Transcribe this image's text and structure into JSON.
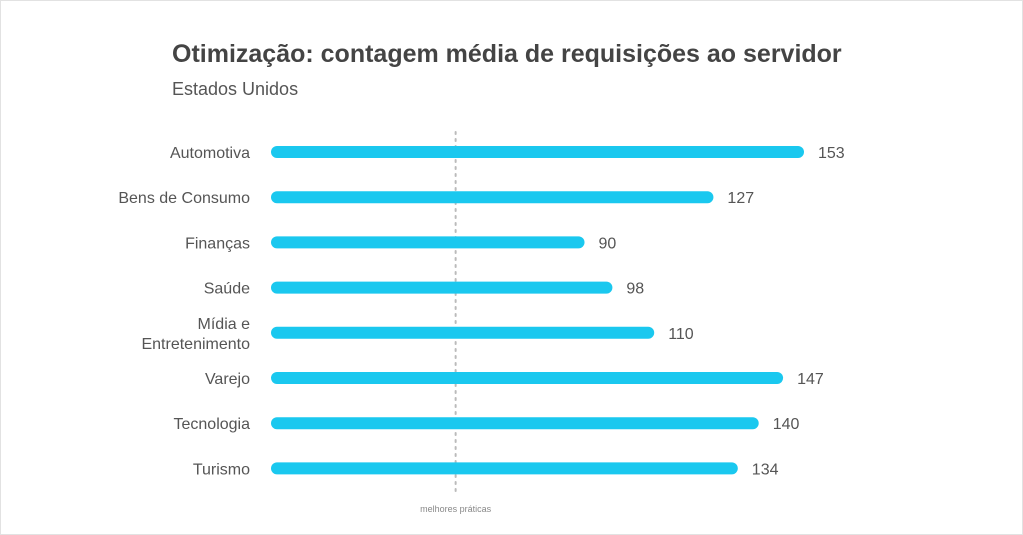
{
  "chart_data": {
    "type": "bar",
    "orientation": "horizontal",
    "title": "Otimização: contagem média de requisições ao servidor",
    "subtitle": "Estados Unidos",
    "categories": [
      "Automotiva",
      "Bens de Consumo",
      "Finanças",
      "Saúde",
      "Mídia e Entretenimento",
      "Varejo",
      "Tecnologia",
      "Turismo"
    ],
    "category_lines": [
      [
        "Automotiva"
      ],
      [
        "Bens de Consumo"
      ],
      [
        "Finanças"
      ],
      [
        "Saúde"
      ],
      [
        "Mídia e",
        "Entretenimento"
      ],
      [
        "Varejo"
      ],
      [
        "Tecnologia"
      ],
      [
        "Turismo"
      ]
    ],
    "values": [
      153,
      127,
      90,
      98,
      110,
      147,
      140,
      134
    ],
    "value_labels": [
      "153",
      "127",
      "90",
      "98",
      "110",
      "147",
      "140",
      "134"
    ],
    "reference_line": {
      "value": 53,
      "label": "melhores práticas"
    },
    "xlim": [
      0,
      153
    ],
    "bar_color": "#1ac8ef",
    "reference_color": "#bbbbbb",
    "grid": false,
    "legend": "none"
  }
}
